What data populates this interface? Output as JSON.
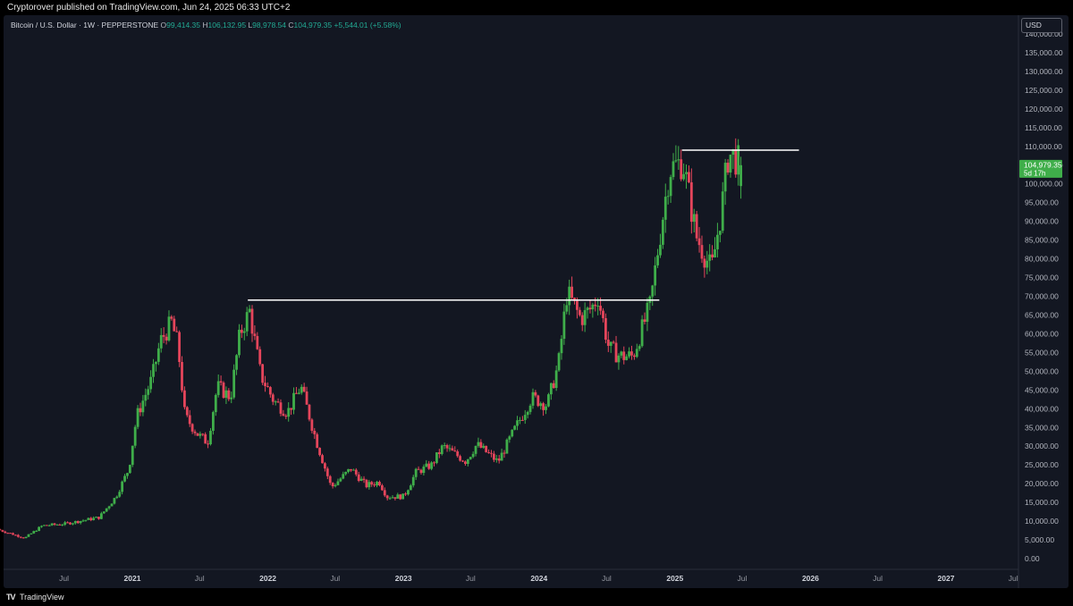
{
  "header": {
    "published": "Cryptorover published on TradingView.com, Jun 24, 2025 06:33 UTC+2"
  },
  "legend": {
    "symbol": "Bitcoin / U.S. Dollar · 1W · PEPPERSTONE",
    "open_label": "O",
    "open": "99,414.35",
    "high_label": "H",
    "high": "106,132.95",
    "low_label": "L",
    "low": "98,978.54",
    "close_label": "C",
    "close": "104,979.35",
    "change": "+5,544.01 (+5.58%)"
  },
  "price_axis": {
    "currency": "USD"
  },
  "last_price": {
    "value": "104,979.35",
    "countdown": "5d 17h"
  },
  "footer": {
    "logo_mark": "TV",
    "brand": "TradingView"
  },
  "colors": {
    "background": "#131722",
    "up": "#3fae4a",
    "down": "#e5455b",
    "level_line": "#ffffff",
    "price_tag": "#3fae4a"
  },
  "chart_data": {
    "type": "candlestick",
    "timeframe": "1W",
    "y_scale": "linear",
    "ylim": [
      0,
      140000
    ],
    "y_ticks": [
      "0.00",
      "5,000.00",
      "10,000.00",
      "15,000.00",
      "20,000.00",
      "25,000.00",
      "30,000.00",
      "35,000.00",
      "40,000.00",
      "45,000.00",
      "50,000.00",
      "55,000.00",
      "60,000.00",
      "65,000.00",
      "70,000.00",
      "75,000.00",
      "80,000.00",
      "85,000.00",
      "90,000.00",
      "95,000.00",
      "100,000.00",
      "105,000.00",
      "110,000.00",
      "115,000.00",
      "120,000.00",
      "125,000.00",
      "130,000.00",
      "135,000.00",
      "140,000.00"
    ],
    "x_ticks": [
      {
        "label": "Jul",
        "date": "2020-07-01"
      },
      {
        "label": "2021",
        "date": "2021-01-01"
      },
      {
        "label": "Jul",
        "date": "2021-07-01"
      },
      {
        "label": "2022",
        "date": "2022-01-01"
      },
      {
        "label": "Jul",
        "date": "2022-07-01"
      },
      {
        "label": "2023",
        "date": "2023-01-01"
      },
      {
        "label": "Jul",
        "date": "2023-07-01"
      },
      {
        "label": "2024",
        "date": "2024-01-01"
      },
      {
        "label": "Jul",
        "date": "2024-07-01"
      },
      {
        "label": "2025",
        "date": "2025-01-01"
      },
      {
        "label": "Jul",
        "date": "2025-07-01"
      },
      {
        "label": "2026",
        "date": "2026-01-01"
      },
      {
        "label": "Jul",
        "date": "2026-07-01"
      },
      {
        "label": "2027",
        "date": "2027-01-01"
      },
      {
        "label": "Jul",
        "date": "2027-07-01"
      }
    ],
    "grid": false,
    "price_path": [
      [
        "2020-01-01",
        7800
      ],
      [
        "2020-03-15",
        5500
      ],
      [
        "2020-05-01",
        8800
      ],
      [
        "2020-07-01",
        9300
      ],
      [
        "2020-10-01",
        11000
      ],
      [
        "2020-11-15",
        16500
      ],
      [
        "2020-12-20",
        24000
      ],
      [
        "2021-01-10",
        38000
      ],
      [
        "2021-02-20",
        48000
      ],
      [
        "2021-03-15",
        58000
      ],
      [
        "2021-04-14",
        63000
      ],
      [
        "2021-05-01",
        57000
      ],
      [
        "2021-05-20",
        38000
      ],
      [
        "2021-06-25",
        33000
      ],
      [
        "2021-07-20",
        31000
      ],
      [
        "2021-08-15",
        46000
      ],
      [
        "2021-09-20",
        43000
      ],
      [
        "2021-10-15",
        60000
      ],
      [
        "2021-11-10",
        66000
      ],
      [
        "2021-12-10",
        49000
      ],
      [
        "2022-01-15",
        42000
      ],
      [
        "2022-02-20",
        39000
      ],
      [
        "2022-03-28",
        46000
      ],
      [
        "2022-05-10",
        31000
      ],
      [
        "2022-06-18",
        19000
      ],
      [
        "2022-08-10",
        24000
      ],
      [
        "2022-09-20",
        19500
      ],
      [
        "2022-10-25",
        20500
      ],
      [
        "2022-11-15",
        16500
      ],
      [
        "2022-12-30",
        16600
      ],
      [
        "2023-02-01",
        23000
      ],
      [
        "2023-03-15",
        25000
      ],
      [
        "2023-04-15",
        30000
      ],
      [
        "2023-06-15",
        26000
      ],
      [
        "2023-07-15",
        30500
      ],
      [
        "2023-09-10",
        25800
      ],
      [
        "2023-10-25",
        34500
      ],
      [
        "2023-12-10",
        43000
      ],
      [
        "2024-01-20",
        41000
      ],
      [
        "2024-02-20",
        52000
      ],
      [
        "2024-03-14",
        71000
      ],
      [
        "2024-04-20",
        64000
      ],
      [
        "2024-05-20",
        67000
      ],
      [
        "2024-06-05",
        70000
      ],
      [
        "2024-07-05",
        56000
      ],
      [
        "2024-08-05",
        54000
      ],
      [
        "2024-09-07",
        54000
      ],
      [
        "2024-10-25",
        68000
      ],
      [
        "2024-11-10",
        80000
      ],
      [
        "2024-12-15",
        104000
      ],
      [
        "2025-01-20",
        106000
      ],
      [
        "2025-02-25",
        86000
      ],
      [
        "2025-04-07",
        77000
      ],
      [
        "2025-05-05",
        94000
      ],
      [
        "2025-05-22",
        108000
      ],
      [
        "2025-06-10",
        107000
      ],
      [
        "2025-06-23",
        104979
      ]
    ],
    "annotations": [
      {
        "type": "horizontal_segment",
        "price": 69000,
        "from": "2021-11-08",
        "to": "2024-11-20"
      },
      {
        "type": "horizontal_segment",
        "price": 109000,
        "from": "2025-01-20",
        "to": "2025-12-01"
      }
    ]
  }
}
